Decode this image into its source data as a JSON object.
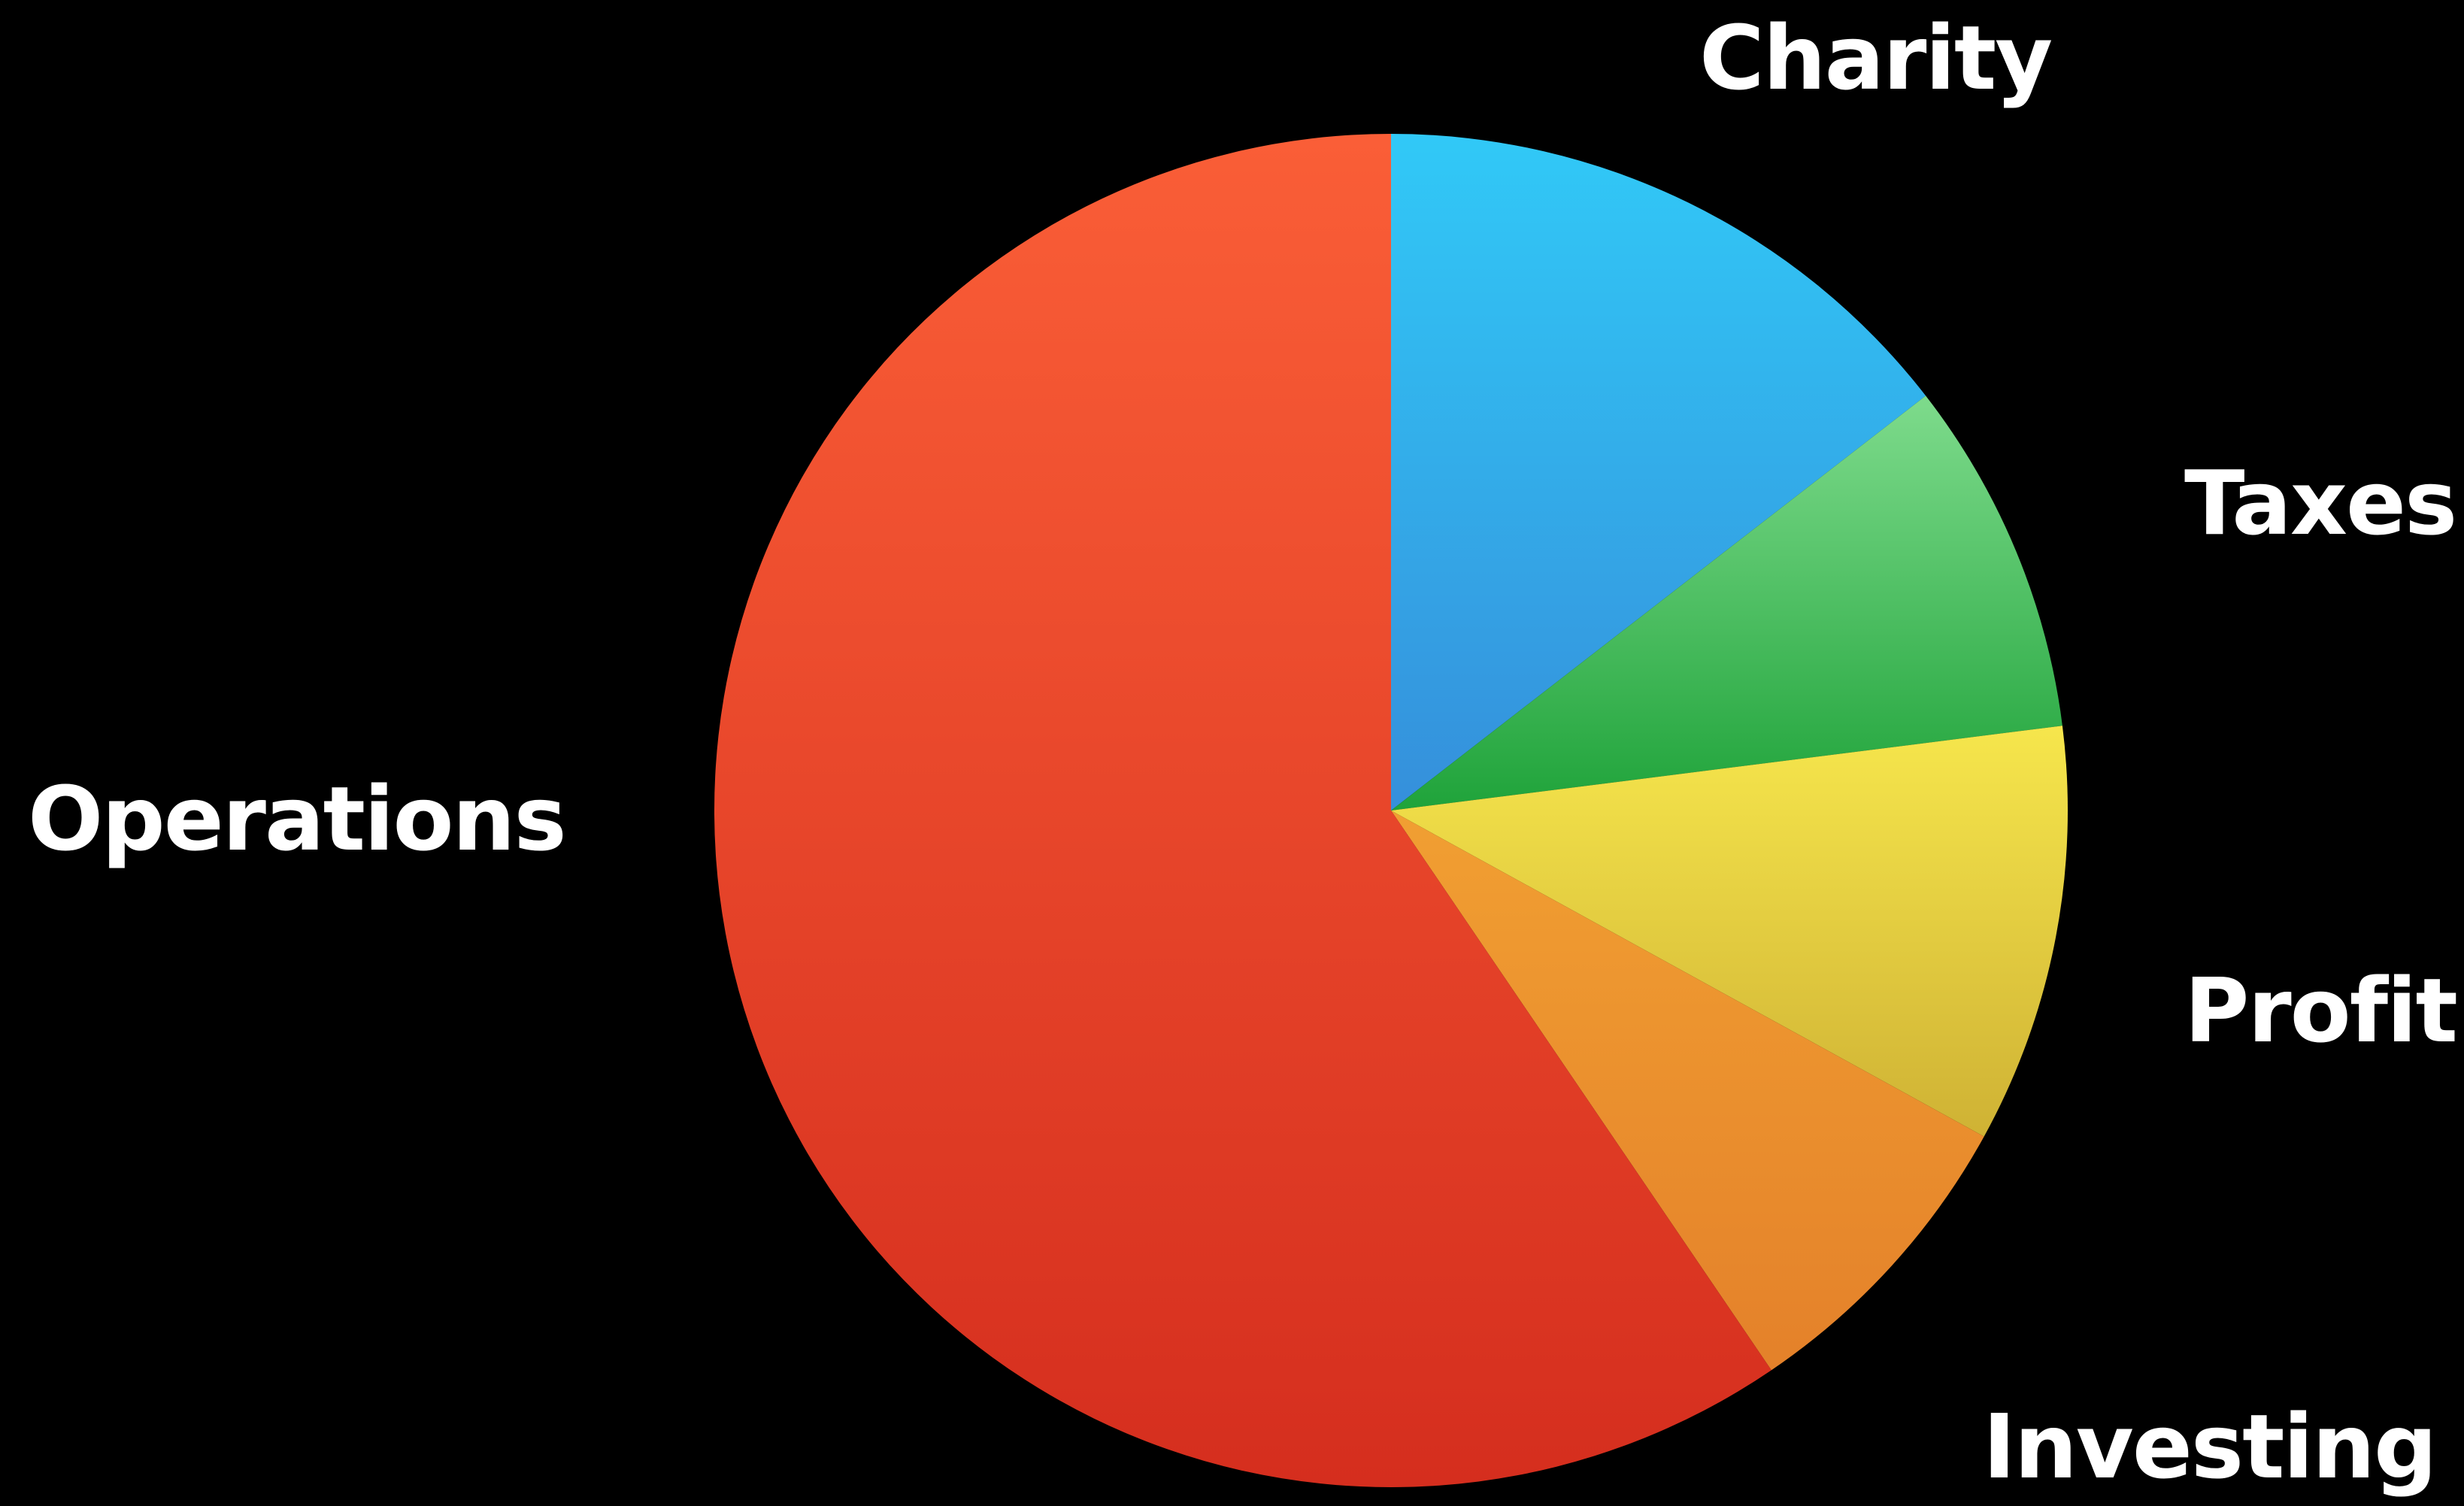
{
  "chart_data": {
    "type": "pie",
    "title": "",
    "start_angle_deg": 0,
    "direction": "clockwise",
    "legend": "none",
    "slices": [
      {
        "label": "Charity",
        "value": 14.5,
        "color_top": "#31C9F7",
        "color_bottom": "#358FDB"
      },
      {
        "label": "Taxes",
        "value": 8.5,
        "color_top": "#7EDB8C",
        "color_bottom": "#1FA33A"
      },
      {
        "label": "Profit",
        "value": 10,
        "color_top": "#F6E64C",
        "color_bottom": "#CFB234"
      },
      {
        "label": "Investing",
        "value": 7.5,
        "color_top": "#F19F32",
        "color_bottom": "#E4812A"
      },
      {
        "label": "Operations",
        "value": 59.5,
        "color_top": "#FA5E37",
        "color_bottom": "#D52E1E"
      }
    ]
  }
}
